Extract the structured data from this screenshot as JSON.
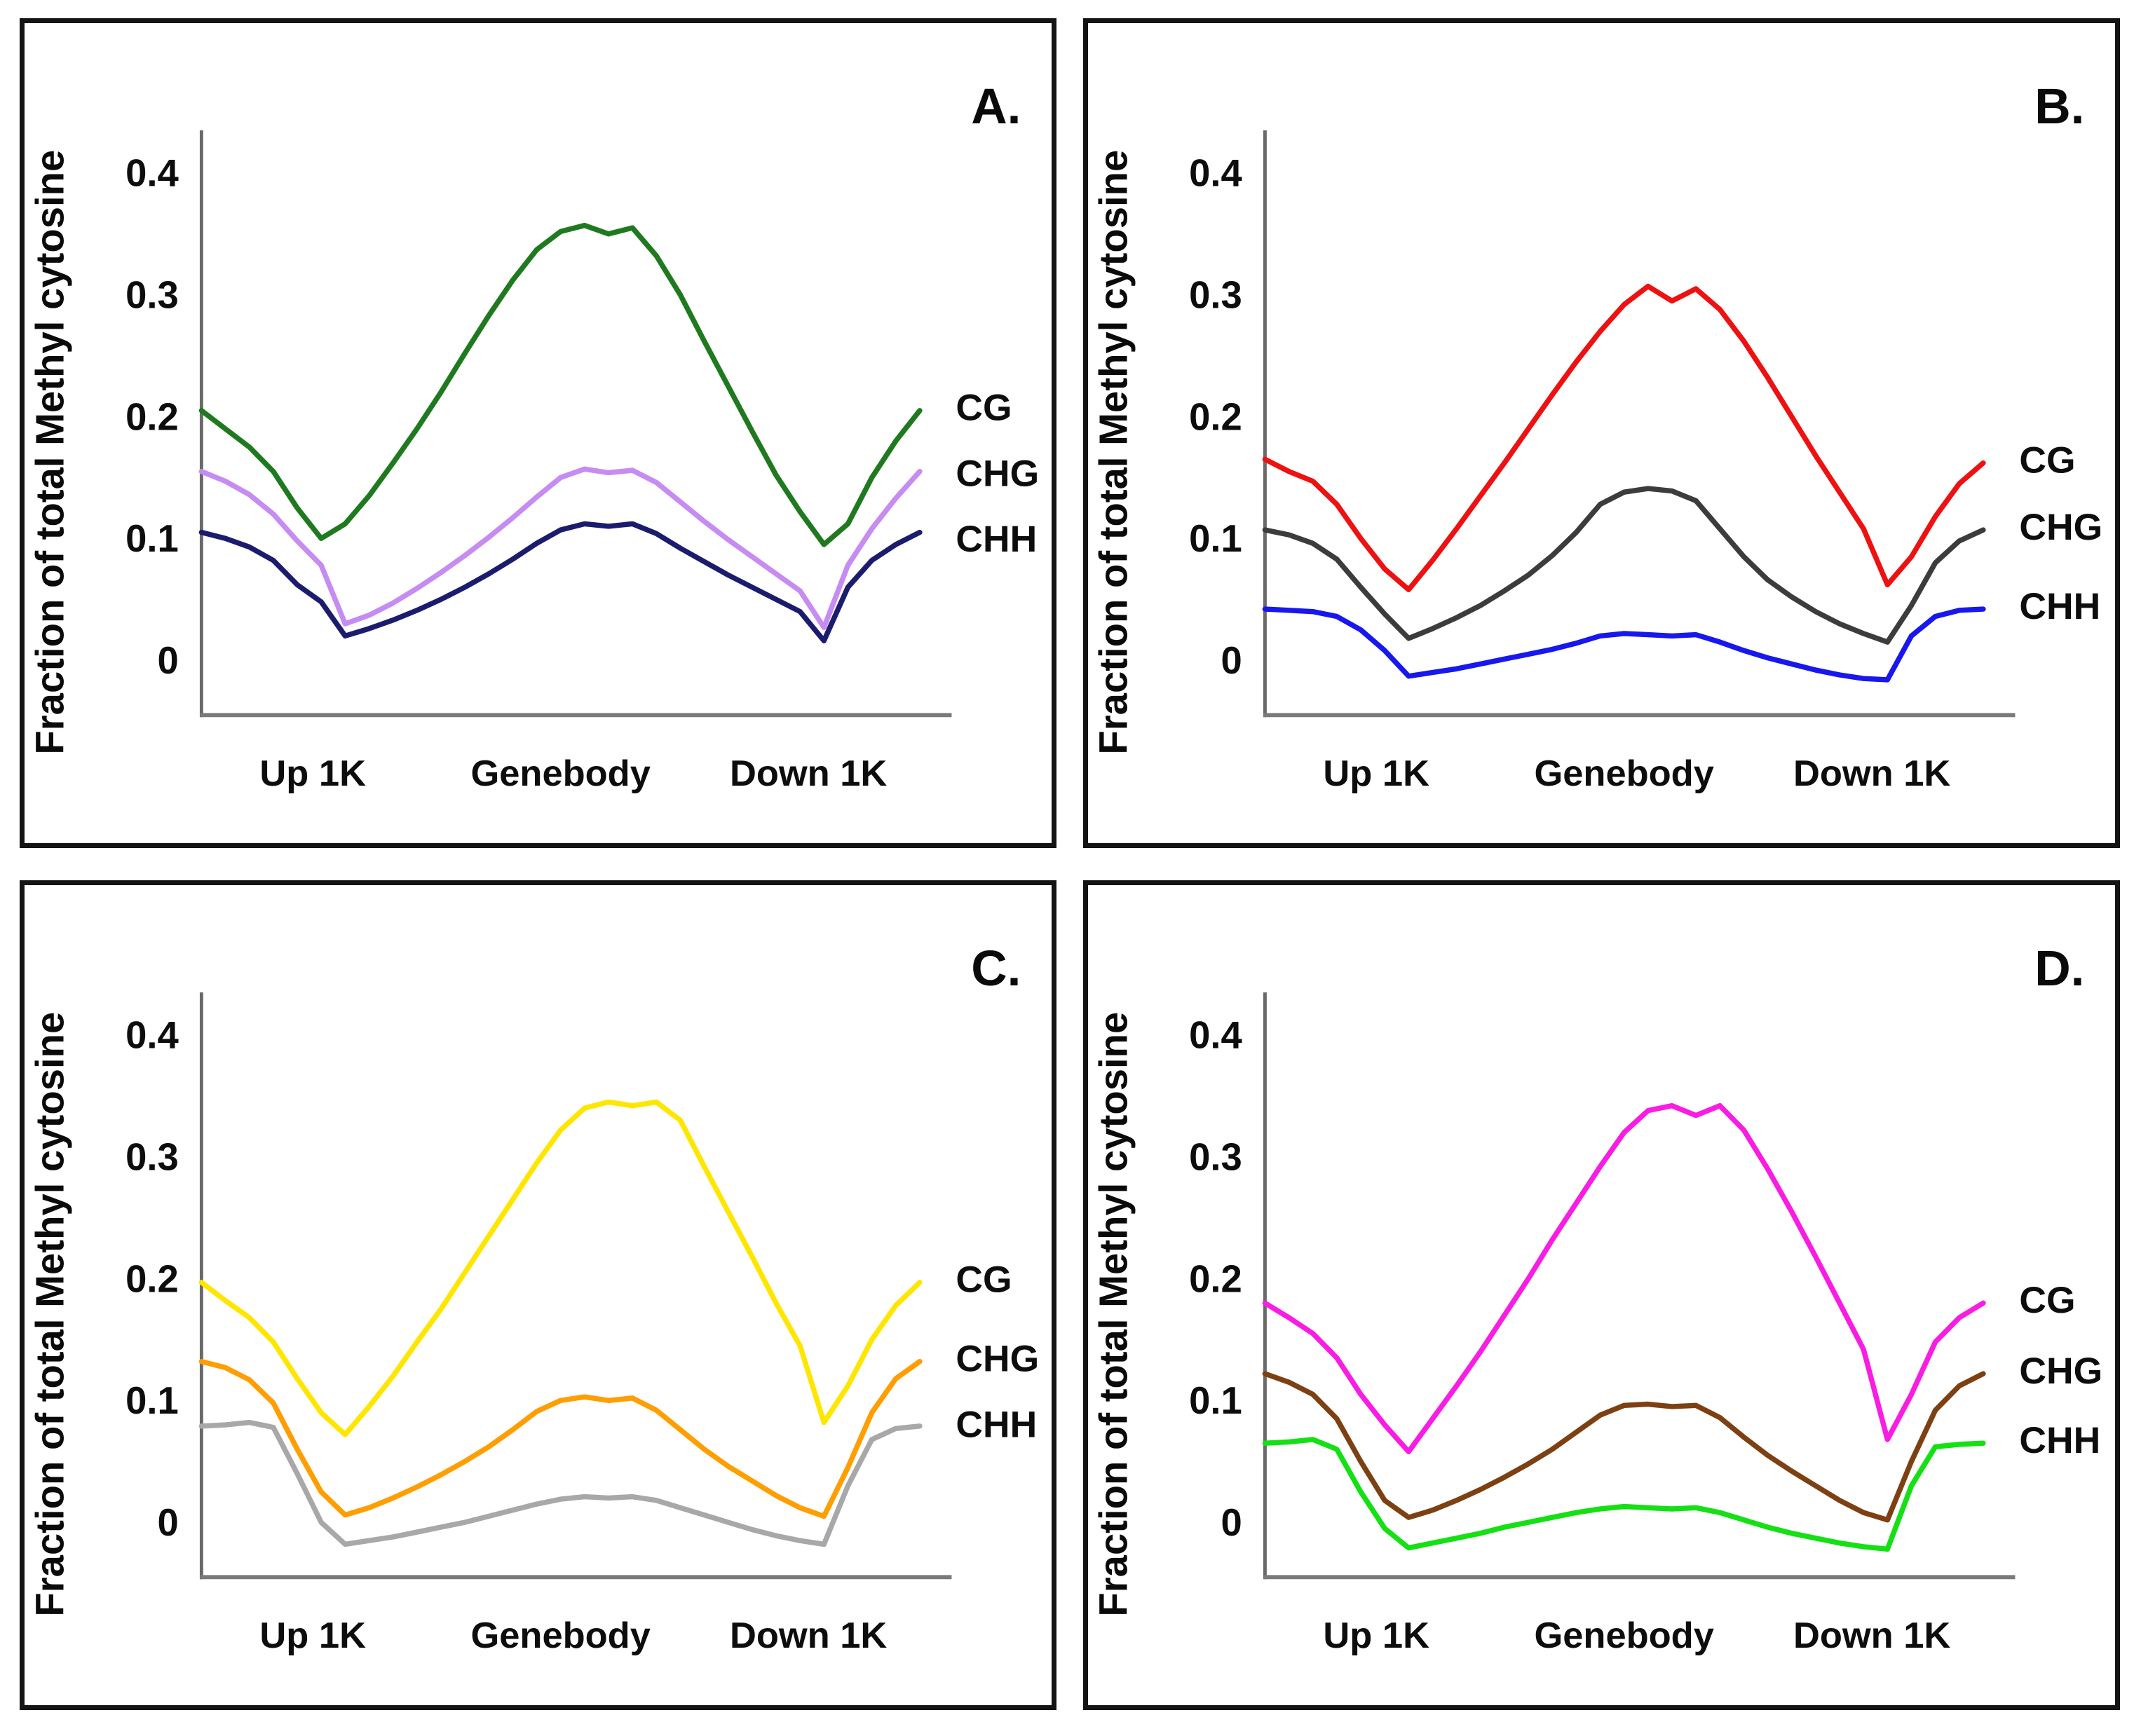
{
  "chart_data": [
    {
      "type": "line",
      "panel_label": "A.",
      "ylabel": "Fraction of total Methyl cytosine",
      "y_ticks": [
        "0.4",
        "0.3",
        "0.2",
        "0.1",
        "0"
      ],
      "y_tick_values": [
        0.4,
        0.3,
        0.2,
        0.1,
        0
      ],
      "ylim": [
        -0.045,
        0.435
      ],
      "x_categories": [
        "Up 1K",
        "Genebody",
        "Down 1K"
      ],
      "x_range": [
        0,
        1
      ],
      "grid": false,
      "legend_position": "right-of-plot",
      "series": [
        {
          "name": "CG",
          "color": "#1f7a1f",
          "values": [
            0.205,
            0.19,
            0.175,
            0.155,
            0.125,
            0.1,
            0.112,
            0.135,
            0.162,
            0.19,
            0.22,
            0.252,
            0.283,
            0.312,
            0.337,
            0.352,
            0.357,
            0.35,
            0.355,
            0.332,
            0.3,
            0.262,
            0.225,
            0.188,
            0.152,
            0.122,
            0.095,
            0.112,
            0.15,
            0.18,
            0.205
          ]
        },
        {
          "name": "CHG",
          "color": "#c68cf2",
          "values": [
            0.155,
            0.147,
            0.136,
            0.12,
            0.098,
            0.078,
            0.03,
            0.037,
            0.047,
            0.059,
            0.072,
            0.086,
            0.101,
            0.117,
            0.134,
            0.15,
            0.157,
            0.154,
            0.156,
            0.146,
            0.13,
            0.114,
            0.099,
            0.085,
            0.071,
            0.057,
            0.027,
            0.078,
            0.108,
            0.133,
            0.155
          ]
        },
        {
          "name": "CHH",
          "color": "#1c1c6e",
          "values": [
            0.105,
            0.1,
            0.093,
            0.082,
            0.062,
            0.048,
            0.02,
            0.026,
            0.033,
            0.041,
            0.05,
            0.06,
            0.071,
            0.083,
            0.096,
            0.107,
            0.112,
            0.11,
            0.112,
            0.104,
            0.092,
            0.081,
            0.07,
            0.06,
            0.05,
            0.04,
            0.016,
            0.06,
            0.082,
            0.095,
            0.105
          ]
        }
      ]
    },
    {
      "type": "line",
      "panel_label": "B.",
      "ylabel": "Fraction of total Methyl cytosine",
      "y_ticks": [
        "0.4",
        "0.3",
        "0.2",
        "0.1",
        "0"
      ],
      "y_tick_values": [
        0.4,
        0.3,
        0.2,
        0.1,
        0
      ],
      "ylim": [
        -0.045,
        0.435
      ],
      "x_categories": [
        "Up 1K",
        "Genebody",
        "Down 1K"
      ],
      "x_range": [
        0,
        1
      ],
      "grid": false,
      "legend_position": "right-of-plot",
      "series": [
        {
          "name": "CG",
          "color": "#ee1111",
          "values": [
            0.165,
            0.155,
            0.147,
            0.128,
            0.1,
            0.075,
            0.058,
            0.082,
            0.108,
            0.135,
            0.162,
            0.19,
            0.218,
            0.245,
            0.27,
            0.292,
            0.307,
            0.295,
            0.305,
            0.288,
            0.262,
            0.232,
            0.2,
            0.168,
            0.138,
            0.108,
            0.062,
            0.085,
            0.118,
            0.145,
            0.162
          ]
        },
        {
          "name": "CHG",
          "color": "#3c3c3c",
          "values": [
            0.107,
            0.103,
            0.096,
            0.083,
            0.06,
            0.038,
            0.018,
            0.026,
            0.035,
            0.045,
            0.057,
            0.07,
            0.086,
            0.105,
            0.128,
            0.138,
            0.141,
            0.139,
            0.131,
            0.108,
            0.085,
            0.066,
            0.052,
            0.04,
            0.03,
            0.022,
            0.015,
            0.045,
            0.08,
            0.098,
            0.107
          ]
        },
        {
          "name": "CHH",
          "color": "#1717ee",
          "values": [
            0.042,
            0.041,
            0.04,
            0.036,
            0.025,
            0.008,
            -0.013,
            -0.01,
            -0.007,
            -0.003,
            0.001,
            0.005,
            0.009,
            0.014,
            0.02,
            0.022,
            0.021,
            0.02,
            0.021,
            0.015,
            0.008,
            0.002,
            -0.003,
            -0.008,
            -0.012,
            -0.015,
            -0.016,
            0.02,
            0.036,
            0.041,
            0.042
          ]
        }
      ]
    },
    {
      "type": "line",
      "panel_label": "C.",
      "ylabel": "Fraction of total Methyl cytosine",
      "y_ticks": [
        "0.4",
        "0.3",
        "0.2",
        "0.1",
        "0"
      ],
      "y_tick_values": [
        0.4,
        0.3,
        0.2,
        0.1,
        0
      ],
      "ylim": [
        -0.045,
        0.435
      ],
      "x_categories": [
        "Up 1K",
        "Genebody",
        "Down 1K"
      ],
      "x_range": [
        0,
        1
      ],
      "grid": false,
      "legend_position": "right-of-plot",
      "series": [
        {
          "name": "CG",
          "color": "#ffe600",
          "values": [
            0.197,
            0.182,
            0.168,
            0.148,
            0.118,
            0.09,
            0.072,
            0.095,
            0.12,
            0.148,
            0.175,
            0.205,
            0.235,
            0.265,
            0.295,
            0.322,
            0.34,
            0.345,
            0.342,
            0.345,
            0.33,
            0.292,
            0.255,
            0.218,
            0.18,
            0.145,
            0.082,
            0.112,
            0.15,
            0.178,
            0.197
          ]
        },
        {
          "name": "CHG",
          "color": "#ff9e00",
          "values": [
            0.132,
            0.127,
            0.117,
            0.098,
            0.06,
            0.025,
            0.006,
            0.012,
            0.02,
            0.029,
            0.039,
            0.05,
            0.062,
            0.076,
            0.091,
            0.1,
            0.103,
            0.1,
            0.102,
            0.092,
            0.076,
            0.06,
            0.046,
            0.034,
            0.022,
            0.012,
            0.005,
            0.045,
            0.09,
            0.118,
            0.132
          ]
        },
        {
          "name": "CHH",
          "color": "#a8a8a8",
          "values": [
            0.079,
            0.08,
            0.082,
            0.078,
            0.04,
            0.0,
            -0.018,
            -0.015,
            -0.012,
            -0.008,
            -0.004,
            0.0,
            0.005,
            0.01,
            0.015,
            0.019,
            0.021,
            0.02,
            0.021,
            0.018,
            0.012,
            0.006,
            0.0,
            -0.006,
            -0.011,
            -0.015,
            -0.018,
            0.03,
            0.068,
            0.077,
            0.079
          ]
        }
      ]
    },
    {
      "type": "line",
      "panel_label": "D.",
      "ylabel": "Fraction of total Methyl cytosine",
      "y_ticks": [
        "0.4",
        "0.3",
        "0.2",
        "0.1",
        "0"
      ],
      "y_tick_values": [
        0.4,
        0.3,
        0.2,
        0.1,
        0
      ],
      "ylim": [
        -0.045,
        0.435
      ],
      "x_categories": [
        "Up 1K",
        "Genebody",
        "Down 1K"
      ],
      "x_range": [
        0,
        1
      ],
      "grid": false,
      "legend_position": "right-of-plot",
      "series": [
        {
          "name": "CG",
          "color": "#f91ce3",
          "values": [
            0.18,
            0.168,
            0.155,
            0.135,
            0.105,
            0.08,
            0.058,
            0.085,
            0.112,
            0.14,
            0.17,
            0.2,
            0.232,
            0.262,
            0.292,
            0.32,
            0.338,
            0.342,
            0.334,
            0.342,
            0.322,
            0.29,
            0.255,
            0.218,
            0.18,
            0.142,
            0.068,
            0.105,
            0.148,
            0.168,
            0.18
          ]
        },
        {
          "name": "CHG",
          "color": "#7d4012",
          "values": [
            0.122,
            0.115,
            0.105,
            0.085,
            0.05,
            0.018,
            0.004,
            0.01,
            0.018,
            0.027,
            0.037,
            0.048,
            0.06,
            0.074,
            0.088,
            0.096,
            0.097,
            0.095,
            0.096,
            0.086,
            0.07,
            0.055,
            0.042,
            0.03,
            0.018,
            0.008,
            0.002,
            0.05,
            0.092,
            0.112,
            0.122
          ]
        },
        {
          "name": "CHH",
          "color": "#14e014",
          "values": [
            0.065,
            0.066,
            0.068,
            0.06,
            0.025,
            -0.005,
            -0.021,
            -0.017,
            -0.013,
            -0.009,
            -0.004,
            0.0,
            0.004,
            0.008,
            0.011,
            0.013,
            0.012,
            0.011,
            0.012,
            0.008,
            0.002,
            -0.004,
            -0.009,
            -0.013,
            -0.017,
            -0.02,
            -0.022,
            0.03,
            0.062,
            0.064,
            0.065
          ]
        }
      ]
    }
  ]
}
